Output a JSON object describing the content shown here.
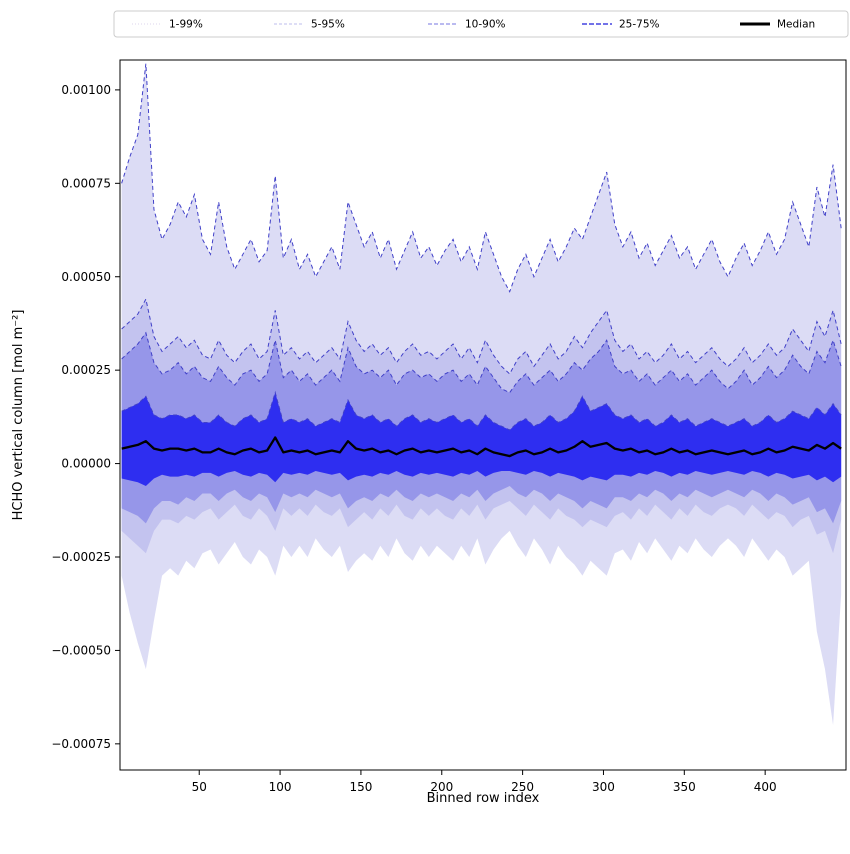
{
  "legend": {
    "entries": [
      {
        "label": "1-99%",
        "color": "#dcd6ee",
        "dash": "1 2",
        "width": 1
      },
      {
        "label": "5-95%",
        "color": "#bdbdec",
        "dash": "3 2",
        "width": 1
      },
      {
        "label": "10-90%",
        "color": "#9090e6",
        "dash": "4 2",
        "width": 1.2
      },
      {
        "label": "25-75%",
        "color": "#4343e0",
        "dash": "5 2",
        "width": 1.4
      },
      {
        "label": "Median",
        "color": "#000000",
        "dash": "",
        "width": 3
      }
    ]
  },
  "chart_data": {
    "type": "area",
    "title": "",
    "xlabel": "Binned row index",
    "ylabel": "HCHO vertical column [mol m⁻²]",
    "xlim": [
      1,
      450
    ],
    "ylim": [
      -0.00082,
      0.00108
    ],
    "x_ticks": [
      50,
      100,
      150,
      200,
      250,
      300,
      350,
      400
    ],
    "y_ticks": [
      -0.00075,
      -0.0005,
      -0.00025,
      0,
      0.00025,
      0.0005,
      0.00075,
      0.001
    ],
    "grid": false,
    "legend_position": "top",
    "y_scale": 1e-05,
    "y_unit_note": "percentile arrays are in units of 1e-5 mol m^-2",
    "x": [
      2,
      7,
      12,
      17,
      22,
      27,
      32,
      37,
      42,
      47,
      52,
      57,
      62,
      67,
      72,
      77,
      82,
      87,
      92,
      97,
      102,
      107,
      112,
      117,
      122,
      127,
      132,
      137,
      142,
      147,
      152,
      157,
      162,
      167,
      172,
      177,
      182,
      187,
      192,
      197,
      202,
      207,
      212,
      217,
      222,
      227,
      232,
      237,
      242,
      247,
      252,
      257,
      262,
      267,
      272,
      277,
      282,
      287,
      292,
      297,
      302,
      307,
      312,
      317,
      322,
      327,
      332,
      337,
      342,
      347,
      352,
      357,
      362,
      367,
      372,
      377,
      382,
      387,
      392,
      397,
      402,
      407,
      412,
      417,
      422,
      427,
      432,
      437,
      442,
      447
    ],
    "percentiles": {
      "p99": [
        75,
        82,
        88,
        107,
        68,
        60,
        64,
        70,
        66,
        72,
        60,
        56,
        70,
        58,
        52,
        56,
        60,
        54,
        57,
        77,
        55,
        60,
        52,
        56,
        50,
        54,
        58,
        52,
        70,
        64,
        58,
        62,
        55,
        60,
        52,
        57,
        62,
        55,
        58,
        53,
        57,
        60,
        54,
        58,
        52,
        62,
        56,
        50,
        46,
        52,
        56,
        50,
        55,
        60,
        54,
        58,
        63,
        60,
        66,
        72,
        78,
        64,
        58,
        62,
        55,
        59,
        53,
        57,
        61,
        55,
        58,
        52,
        56,
        60,
        54,
        50,
        55,
        59,
        53,
        57,
        62,
        56,
        60,
        70,
        64,
        58,
        74,
        66,
        80,
        63
      ],
      "p95": [
        36,
        38,
        40,
        44,
        34,
        30,
        32,
        34,
        31,
        33,
        29,
        28,
        33,
        29,
        27,
        30,
        32,
        28,
        30,
        41,
        29,
        31,
        28,
        30,
        27,
        29,
        31,
        28,
        38,
        33,
        30,
        32,
        29,
        31,
        27,
        30,
        32,
        29,
        30,
        28,
        30,
        32,
        28,
        31,
        27,
        33,
        29,
        26,
        24,
        28,
        30,
        26,
        29,
        32,
        28,
        30,
        34,
        31,
        35,
        38,
        41,
        33,
        30,
        32,
        28,
        30,
        27,
        29,
        32,
        28,
        30,
        27,
        29,
        31,
        28,
        26,
        28,
        31,
        27,
        29,
        32,
        29,
        31,
        36,
        33,
        30,
        38,
        34,
        41,
        32
      ],
      "p90": [
        28,
        30,
        32,
        35,
        27,
        24,
        25,
        27,
        24,
        26,
        23,
        22,
        26,
        23,
        21,
        24,
        25,
        22,
        24,
        33,
        23,
        25,
        22,
        24,
        21,
        23,
        25,
        22,
        31,
        26,
        24,
        25,
        23,
        25,
        21,
        24,
        25,
        23,
        24,
        22,
        24,
        25,
        22,
        24,
        21,
        26,
        23,
        20,
        19,
        22,
        24,
        21,
        23,
        25,
        22,
        24,
        27,
        25,
        28,
        30,
        33,
        26,
        24,
        25,
        22,
        24,
        21,
        23,
        25,
        22,
        24,
        21,
        23,
        25,
        22,
        20,
        22,
        25,
        21,
        23,
        26,
        23,
        25,
        29,
        26,
        24,
        30,
        27,
        33,
        26
      ],
      "p75": [
        14,
        15,
        16,
        18,
        13,
        12,
        13,
        13,
        12,
        13,
        11,
        11,
        13,
        11,
        10,
        12,
        13,
        11,
        12,
        19,
        11,
        12,
        11,
        12,
        10,
        11,
        12,
        11,
        17,
        13,
        12,
        13,
        11,
        12,
        10,
        12,
        13,
        11,
        12,
        11,
        12,
        13,
        11,
        12,
        10,
        13,
        11,
        10,
        9,
        11,
        12,
        10,
        11,
        13,
        11,
        12,
        14,
        18,
        14,
        15,
        16,
        13,
        12,
        13,
        11,
        12,
        10,
        11,
        13,
        11,
        12,
        10,
        11,
        12,
        11,
        10,
        11,
        12,
        10,
        11,
        13,
        11,
        12,
        14,
        13,
        12,
        15,
        13,
        16,
        13
      ],
      "p25": [
        -4,
        -4.5,
        -5,
        -6,
        -4,
        -3,
        -3.5,
        -3.5,
        -3,
        -3.5,
        -2.5,
        -2.5,
        -3.5,
        -2.5,
        -2,
        -3,
        -3.5,
        -2.5,
        -3,
        -5,
        -2.5,
        -3,
        -2.5,
        -3,
        -2,
        -2.5,
        -3,
        -2.5,
        -4.5,
        -3.5,
        -3,
        -3.5,
        -2.5,
        -3,
        -2,
        -3,
        -3.5,
        -2.5,
        -3,
        -2.5,
        -3,
        -3.5,
        -2.5,
        -3,
        -2,
        -3.5,
        -2.5,
        -2,
        -2,
        -2.5,
        -3,
        -2,
        -2.5,
        -3.5,
        -2.5,
        -3,
        -3.5,
        -4.5,
        -3.5,
        -4,
        -4.5,
        -3,
        -3,
        -3.5,
        -2.5,
        -3,
        -2,
        -2.5,
        -3.5,
        -2.5,
        -3,
        -2,
        -2.5,
        -3,
        -2.5,
        -2,
        -2.5,
        -3,
        -2,
        -2.5,
        -3.5,
        -2.5,
        -3,
        -4,
        -3.5,
        -3,
        -4.5,
        -3.5,
        -5,
        -3.5
      ],
      "p10": [
        -12,
        -13,
        -14,
        -16,
        -12,
        -10,
        -10,
        -11,
        -9,
        -10,
        -8,
        -8,
        -10,
        -8,
        -7,
        -9,
        -10,
        -8,
        -9,
        -13,
        -8,
        -9,
        -8,
        -9,
        -7,
        -8,
        -9,
        -8,
        -12,
        -10,
        -9,
        -10,
        -8,
        -9,
        -7,
        -9,
        -10,
        -8,
        -9,
        -8,
        -9,
        -10,
        -8,
        -9,
        -7,
        -10,
        -8,
        -7,
        -6,
        -8,
        -9,
        -7,
        -8,
        -10,
        -8,
        -9,
        -10,
        -12,
        -10,
        -11,
        -12,
        -9,
        -9,
        -10,
        -8,
        -9,
        -7,
        -8,
        -10,
        -8,
        -9,
        -7,
        -8,
        -9,
        -8,
        -7,
        -8,
        -9,
        -7,
        -8,
        -10,
        -8,
        -9,
        -11,
        -10,
        -9,
        -13,
        -12,
        -16,
        -10
      ],
      "p05": [
        -18,
        -20,
        -22,
        -24,
        -18,
        -15,
        -15,
        -16,
        -14,
        -15,
        -13,
        -12,
        -15,
        -13,
        -11,
        -14,
        -15,
        -12,
        -14,
        -18,
        -12,
        -14,
        -12,
        -14,
        -11,
        -13,
        -14,
        -12,
        -17,
        -15,
        -13,
        -15,
        -12,
        -14,
        -11,
        -14,
        -15,
        -12,
        -14,
        -12,
        -14,
        -15,
        -12,
        -14,
        -11,
        -15,
        -12,
        -11,
        -10,
        -12,
        -14,
        -11,
        -13,
        -15,
        -12,
        -14,
        -15,
        -17,
        -15,
        -16,
        -17,
        -14,
        -13,
        -15,
        -12,
        -14,
        -11,
        -13,
        -15,
        -12,
        -14,
        -11,
        -13,
        -14,
        -12,
        -11,
        -12,
        -14,
        -11,
        -13,
        -15,
        -13,
        -14,
        -17,
        -15,
        -14,
        -19,
        -18,
        -24,
        -15
      ],
      "p01": [
        -30,
        -40,
        -48,
        -55,
        -42,
        -30,
        -28,
        -30,
        -26,
        -28,
        -24,
        -23,
        -27,
        -24,
        -21,
        -25,
        -27,
        -23,
        -25,
        -30,
        -22,
        -25,
        -22,
        -25,
        -20,
        -23,
        -25,
        -22,
        -29,
        -26,
        -24,
        -26,
        -22,
        -25,
        -20,
        -24,
        -26,
        -22,
        -25,
        -22,
        -24,
        -26,
        -22,
        -25,
        -20,
        -27,
        -23,
        -20,
        -18,
        -22,
        -25,
        -20,
        -23,
        -27,
        -22,
        -25,
        -27,
        -30,
        -26,
        -28,
        -30,
        -24,
        -23,
        -26,
        -21,
        -24,
        -20,
        -23,
        -26,
        -22,
        -24,
        -20,
        -23,
        -25,
        -22,
        -20,
        -22,
        -25,
        -20,
        -23,
        -26,
        -23,
        -25,
        -30,
        -28,
        -26,
        -45,
        -55,
        -70,
        -35
      ]
    },
    "median": [
      4,
      4.5,
      5,
      6,
      4,
      3.5,
      4,
      4,
      3.5,
      4,
      3,
      3,
      4,
      3,
      2.5,
      3.5,
      4,
      3,
      3.5,
      7,
      3,
      3.5,
      3,
      3.5,
      2.5,
      3,
      3.5,
      3,
      6,
      4,
      3.5,
      4,
      3,
      3.5,
      2.5,
      3.5,
      4,
      3,
      3.5,
      3,
      3.5,
      4,
      3,
      3.5,
      2.5,
      4,
      3,
      2.5,
      2,
      3,
      3.5,
      2.5,
      3,
      4,
      3,
      3.5,
      4.5,
      6,
      4.5,
      5,
      5.5,
      4,
      3.5,
      4,
      3,
      3.5,
      2.5,
      3,
      4,
      3,
      3.5,
      2.5,
      3,
      3.5,
      3,
      2.5,
      3,
      3.5,
      2.5,
      3,
      4,
      3,
      3.5,
      4.5,
      4,
      3.5,
      5,
      4,
      5.5,
      4
    ],
    "bands": [
      {
        "range": "1-99%",
        "lower": "p01",
        "upper": "p99",
        "fill": "#dcdcf5"
      },
      {
        "range": "5-95%",
        "lower": "p05",
        "upper": "p95",
        "fill": "#c3c3ef"
      },
      {
        "range": "10-90%",
        "lower": "p10",
        "upper": "p90",
        "fill": "#9696e9"
      },
      {
        "range": "25-75%",
        "lower": "p25",
        "upper": "p75",
        "fill": "#2e2ef0"
      }
    ],
    "edge_lines": {
      "series": [
        "p75",
        "p90",
        "p95",
        "p99"
      ],
      "color": "#4040c8",
      "dash": "4 3",
      "width": 1
    },
    "median_style": {
      "color": "#000000",
      "width": 2.3
    }
  }
}
